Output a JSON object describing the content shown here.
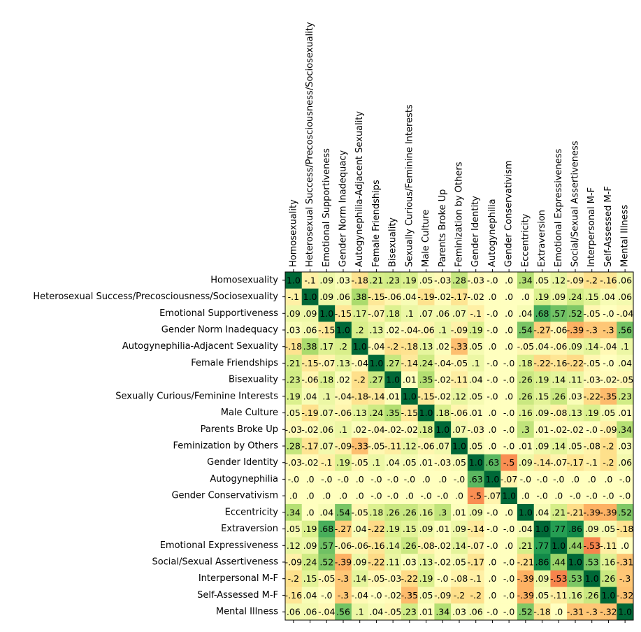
{
  "chart_data": {
    "type": "heatmap",
    "title": "",
    "xlabel": "",
    "ylabel": "",
    "labels": [
      "Homosexuality",
      "Heterosexual Success/Precosciousness/Sociosexuality",
      "Emotional Supportiveness",
      "Gender Norm Inadequacy",
      "Autogynephilia-Adjacent Sexuality",
      "Female Friendships",
      "Bisexuality",
      "Sexually Curious/Feminine Interests",
      "Male Culture",
      "Parents Broke Up",
      "Feminization by Others",
      "Gender Identity",
      "Autogynephilia",
      "Gender Conservativism",
      "Eccentricity",
      "Extraversion",
      "Emotional Expressiveness",
      "Social/Sexual Assertiveness",
      "Interpersonal M-F",
      "Self-Assessed M-F",
      "Mental Illness"
    ],
    "cell_text": [
      [
        "1.0",
        "-.1",
        ".09",
        ".03",
        "-.18",
        ".21",
        ".23",
        ".19",
        ".05",
        "-.03",
        ".28",
        "-.03",
        "-.0",
        ".0",
        ".34",
        ".05",
        ".12",
        "-.09",
        "-.2",
        "-.16",
        ".06"
      ],
      [
        "-.1",
        "1.0",
        ".09",
        ".06",
        ".38",
        "-.15",
        "-.06",
        ".04",
        "-.19",
        "-.02",
        "-.17",
        "-.02",
        ".0",
        ".0",
        ".0",
        ".19",
        ".09",
        ".24",
        ".15",
        ".04",
        ".06"
      ],
      [
        ".09",
        ".09",
        "1.0",
        "-.15",
        ".17",
        "-.07",
        ".18",
        ".1",
        ".07",
        ".06",
        ".07",
        "-.1",
        "-.0",
        ".0",
        ".04",
        ".68",
        ".57",
        ".52",
        "-.05",
        "-.0",
        "-.04"
      ],
      [
        ".03",
        ".06",
        "-.15",
        "1.0",
        ".2",
        ".13",
        ".02",
        "-.04",
        "-.06",
        ".1",
        "-.09",
        ".19",
        "-.0",
        ".0",
        ".54",
        "-.27",
        "-.06",
        "-.39",
        "-.3",
        "-.3",
        ".56"
      ],
      [
        "-.18",
        ".38",
        ".17",
        ".2",
        "1.0",
        "-.04",
        "-.2",
        "-.18",
        ".13",
        ".02",
        "-.33",
        ".05",
        ".0",
        ".0",
        "-.05",
        ".04",
        "-.06",
        ".09",
        ".14",
        "-.04",
        ".1"
      ],
      [
        ".21",
        "-.15",
        "-.07",
        ".13",
        "-.04",
        "1.0",
        ".27",
        "-.14",
        ".24",
        "-.04",
        "-.05",
        ".1",
        "-.0",
        "-.0",
        ".18",
        "-.22",
        "-.16",
        "-.22",
        "-.05",
        "-.0",
        ".04"
      ],
      [
        ".23",
        "-.06",
        ".18",
        ".02",
        "-.2",
        ".27",
        "1.0",
        ".01",
        ".35",
        "-.02",
        "-.11",
        ".04",
        "-.0",
        "-.0",
        ".26",
        ".19",
        ".14",
        ".11",
        "-.03",
        "-.02",
        "-.05"
      ],
      [
        ".19",
        ".04",
        ".1",
        "-.04",
        "-.18",
        "-.14",
        ".01",
        "1.0",
        "-.15",
        "-.02",
        ".12",
        ".05",
        "-.0",
        ".0",
        ".26",
        ".15",
        ".26",
        ".03",
        "-.22",
        "-.35",
        ".23"
      ],
      [
        ".05",
        "-.19",
        ".07",
        "-.06",
        ".13",
        ".24",
        ".35",
        "-.15",
        "1.0",
        ".18",
        "-.06",
        ".01",
        ".0",
        "-.0",
        ".16",
        ".09",
        "-.08",
        ".13",
        ".19",
        ".05",
        ".01"
      ],
      [
        "-.03",
        "-.02",
        ".06",
        ".1",
        ".02",
        "-.04",
        "-.02",
        "-.02",
        ".18",
        "1.0",
        ".07",
        "-.03",
        ".0",
        "-.0",
        ".3",
        ".01",
        "-.02",
        "-.02",
        "-.0",
        "-.09",
        ".34"
      ],
      [
        ".28",
        "-.17",
        ".07",
        "-.09",
        "-.33",
        "-.05",
        "-.11",
        ".12",
        "-.06",
        ".07",
        "1.0",
        ".05",
        ".0",
        "-.0",
        ".01",
        ".09",
        ".14",
        ".05",
        "-.08",
        "-.2",
        ".03"
      ],
      [
        "-.03",
        "-.02",
        "-.1",
        ".19",
        "-.05",
        ".1",
        ".04",
        ".05",
        ".01",
        "-.03",
        ".05",
        "1.0",
        ".63",
        "-.5",
        ".09",
        "-.14",
        "-.07",
        "-.17",
        "-.1",
        "-.2",
        ".06"
      ],
      [
        "-.0",
        ".0",
        "-.0",
        "-.0",
        ".0",
        "-.0",
        "-.0",
        "-.0",
        ".0",
        ".0",
        "-.0",
        ".63",
        "1.0",
        "-.07",
        "-.0",
        "-.0",
        "-.0",
        ".0",
        ".0",
        ".0",
        "-.0"
      ],
      [
        ".0",
        ".0",
        ".0",
        ".0",
        ".0",
        "-.0",
        "-.0",
        ".0",
        "-.0",
        "-.0",
        ".0",
        "-.5",
        "-.07",
        "1.0",
        ".0",
        "-.0",
        ".0",
        "-.0",
        "-.0",
        "-.0",
        "-.0"
      ],
      [
        ".34",
        ".0",
        ".04",
        ".54",
        "-.05",
        ".18",
        ".26",
        ".26",
        ".16",
        ".3",
        ".01",
        ".09",
        "-.0",
        ".0",
        "1.0",
        ".04",
        ".21",
        "-.21",
        "-.39",
        "-.39",
        ".52"
      ],
      [
        ".05",
        ".19",
        ".68",
        "-.27",
        ".04",
        "-.22",
        ".19",
        ".15",
        ".09",
        ".01",
        ".09",
        "-.14",
        "-.0",
        "-.0",
        ".04",
        "1.0",
        ".77",
        ".86",
        ".09",
        ".05",
        "-.18"
      ],
      [
        ".12",
        ".09",
        ".57",
        "-.06",
        "-.06",
        "-.16",
        ".14",
        ".26",
        "-.08",
        "-.02",
        ".14",
        "-.07",
        "-.0",
        ".0",
        ".21",
        ".77",
        "1.0",
        ".44",
        "-.53",
        "-.11",
        ".0"
      ],
      [
        "-.09",
        ".24",
        ".52",
        "-.39",
        ".09",
        "-.22",
        ".11",
        ".03",
        ".13",
        "-.02",
        ".05",
        "-.17",
        ".0",
        "-.0",
        "-.21",
        ".86",
        ".44",
        "1.0",
        ".53",
        ".16",
        "-.31"
      ],
      [
        "-.2",
        ".15",
        "-.05",
        "-.3",
        ".14",
        "-.05",
        "-.03",
        "-.22",
        ".19",
        "-.0",
        "-.08",
        "-.1",
        ".0",
        "-.0",
        "-.39",
        ".09",
        "-.53",
        ".53",
        "1.0",
        ".26",
        "-.3"
      ],
      [
        "-.16",
        ".04",
        "-.0",
        "-.3",
        "-.04",
        "-.0",
        "-.02",
        "-.35",
        ".05",
        "-.09",
        "-.2",
        "-.2",
        ".0",
        "-.0",
        "-.39",
        ".05",
        "-.11",
        ".16",
        ".26",
        "1.0",
        "-.32"
      ],
      [
        ".06",
        ".06",
        "-.04",
        ".56",
        ".1",
        ".04",
        "-.05",
        ".23",
        ".01",
        ".34",
        ".03",
        ".06",
        "-.0",
        "-.0",
        ".52",
        "-.18",
        ".0",
        "-.31",
        "-.3",
        "-.32",
        "1.0"
      ]
    ],
    "vmin": -1,
    "vmax": 1,
    "colormap": "RdYlGn",
    "color_stops": [
      "#a50026",
      "#d73027",
      "#f46d43",
      "#fdae61",
      "#fee08b",
      "#ffffbf",
      "#d9ef8b",
      "#a6d96a",
      "#66bd63",
      "#1a9850",
      "#006837"
    ],
    "grid": false,
    "legend": "none"
  }
}
